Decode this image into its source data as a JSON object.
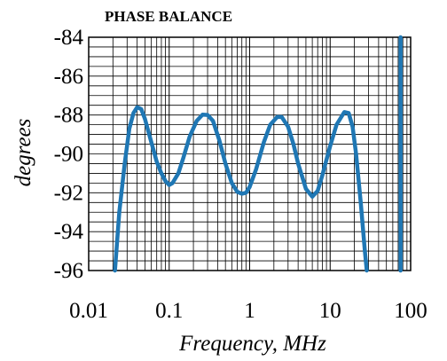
{
  "chart_data": {
    "type": "line",
    "title": "PHASE BALANCE",
    "xlabel": "Frequency, MHz",
    "ylabel": "degrees",
    "x_scale": "log",
    "xlim": [
      0.01,
      100
    ],
    "ylim": [
      -96,
      -84
    ],
    "grid": true,
    "x_ticks": [
      "0.01",
      "0.1",
      "1",
      "10",
      "100"
    ],
    "y_ticks": [
      "-84",
      "-86",
      "-88",
      "-90",
      "-92",
      "-94",
      "-96"
    ],
    "series": [
      {
        "color": "#1f77b4",
        "x": [
          0.0212,
          0.024,
          0.028,
          0.032,
          0.036,
          0.04,
          0.045,
          0.05,
          0.06,
          0.07,
          0.08,
          0.09,
          0.1,
          0.11,
          0.13,
          0.15,
          0.18,
          0.22,
          0.26,
          0.3,
          0.35,
          0.42,
          0.5,
          0.6,
          0.7,
          0.8,
          0.9,
          1.0,
          1.2,
          1.5,
          1.8,
          2.2,
          2.5,
          3.0,
          3.5,
          4.0,
          5.0,
          6.0,
          7.0,
          8.0,
          9.0,
          10.0,
          12.0,
          15.0,
          17.0,
          19.0,
          21.0,
          24.0,
          27.0,
          28.5
        ],
        "y": [
          -96.0,
          -93.0,
          -90.5,
          -88.7,
          -87.9,
          -87.6,
          -87.7,
          -88.2,
          -89.4,
          -90.4,
          -91.0,
          -91.4,
          -91.6,
          -91.5,
          -91.0,
          -90.2,
          -89.1,
          -88.3,
          -87.98,
          -88.0,
          -88.3,
          -89.3,
          -90.5,
          -91.5,
          -91.95,
          -92.05,
          -92.0,
          -91.7,
          -90.8,
          -89.4,
          -88.5,
          -88.1,
          -88.1,
          -88.6,
          -89.5,
          -90.5,
          -91.8,
          -92.2,
          -91.9,
          -91.1,
          -90.3,
          -89.6,
          -88.5,
          -87.85,
          -87.9,
          -88.6,
          -90.0,
          -92.5,
          -95.0,
          -96.0
        ]
      },
      {
        "color": "#1f77b4",
        "x": [
          75,
          75
        ],
        "y": [
          -96,
          -84
        ]
      }
    ]
  }
}
